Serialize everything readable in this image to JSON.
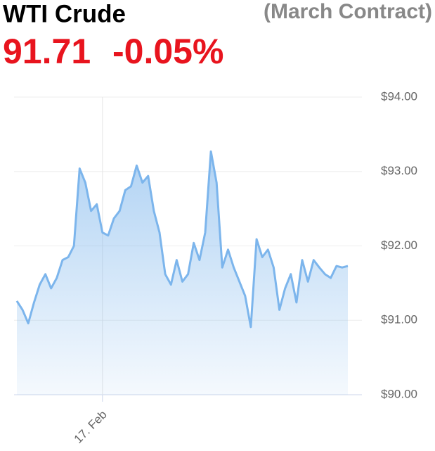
{
  "chart_data": {
    "type": "area",
    "title": "WTI Crude",
    "subtitle": "(March Contract)",
    "price": "91.71",
    "change": "-0.05%",
    "color": "#7cb5ec",
    "categories": [
      null,
      null,
      null,
      null,
      null,
      null,
      null,
      null,
      null,
      null,
      null,
      null,
      null,
      null,
      null,
      "17. Feb",
      null,
      null,
      null,
      null,
      null,
      null,
      null,
      null,
      null,
      null,
      null,
      null,
      null,
      null,
      null,
      null,
      null,
      null,
      null,
      null,
      null,
      null,
      null,
      null,
      null,
      null,
      null,
      null,
      null,
      null,
      null,
      null,
      null,
      null,
      null,
      null,
      null,
      null,
      null,
      null,
      null,
      null,
      null
    ],
    "values": [
      91.26,
      91.14,
      90.96,
      91.24,
      91.48,
      91.62,
      91.43,
      91.57,
      91.81,
      91.85,
      92.0,
      93.04,
      92.85,
      92.47,
      92.56,
      92.18,
      92.14,
      92.37,
      92.47,
      92.75,
      92.8,
      93.08,
      92.85,
      92.94,
      92.47,
      92.18,
      91.62,
      91.48,
      91.81,
      91.52,
      91.62,
      92.04,
      91.81,
      92.18,
      93.27,
      92.85,
      91.71,
      91.95,
      91.71,
      91.52,
      91.33,
      90.91,
      92.09,
      91.85,
      91.95,
      91.71,
      91.14,
      91.43,
      91.62,
      91.24,
      91.81,
      91.52,
      91.81,
      91.71,
      91.62,
      91.57,
      91.73,
      91.71,
      91.73
    ],
    "ylim": [
      90,
      94
    ],
    "yticks": [
      {
        "value": 90,
        "label": "$90.00"
      },
      {
        "value": 91,
        "label": "$91.00"
      },
      {
        "value": 92,
        "label": "$92.00"
      },
      {
        "value": 93,
        "label": "$93.00"
      },
      {
        "value": 94,
        "label": "$94.00"
      }
    ],
    "grid": true
  }
}
